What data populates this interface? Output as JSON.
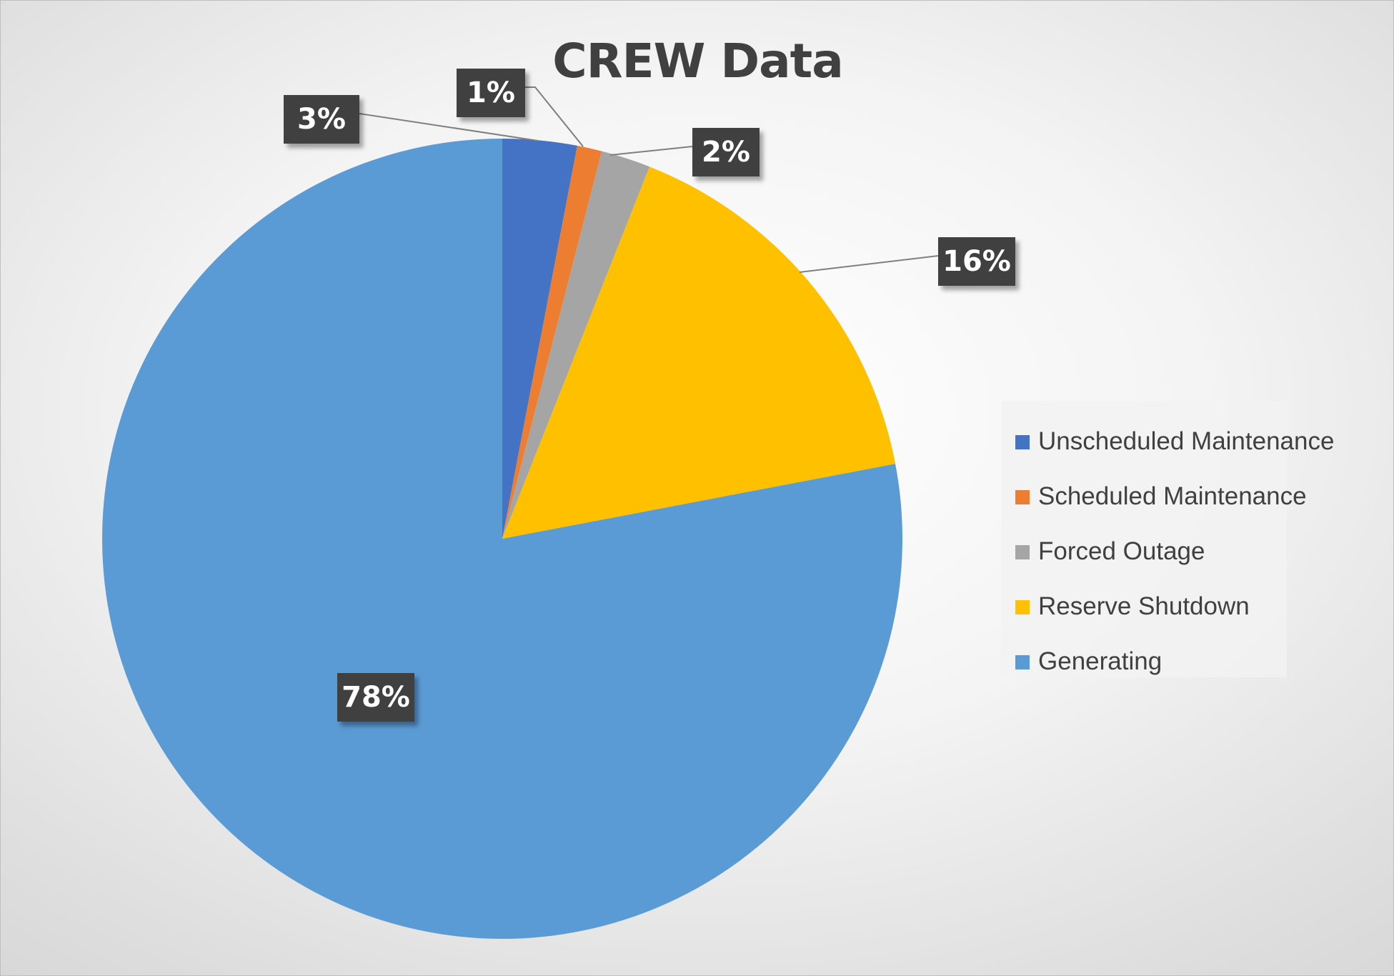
{
  "chart_data": {
    "type": "pie",
    "title": "CREW Data",
    "categories": [
      "Unscheduled Maintenance",
      "Scheduled Maintenance",
      "Forced Outage",
      "Reserve Shutdown",
      "Generating"
    ],
    "values": [
      3,
      1,
      2,
      16,
      78
    ],
    "data_labels": [
      "3%",
      "1%",
      "2%",
      "16%",
      "78%"
    ],
    "colors": [
      "#4472C4",
      "#ED7D31",
      "#A5A5A5",
      "#FFC000",
      "#5B9BD5"
    ],
    "start_angle_deg": 0,
    "direction": "clockwise",
    "legend_position": "right",
    "data_label_style": "callout"
  }
}
